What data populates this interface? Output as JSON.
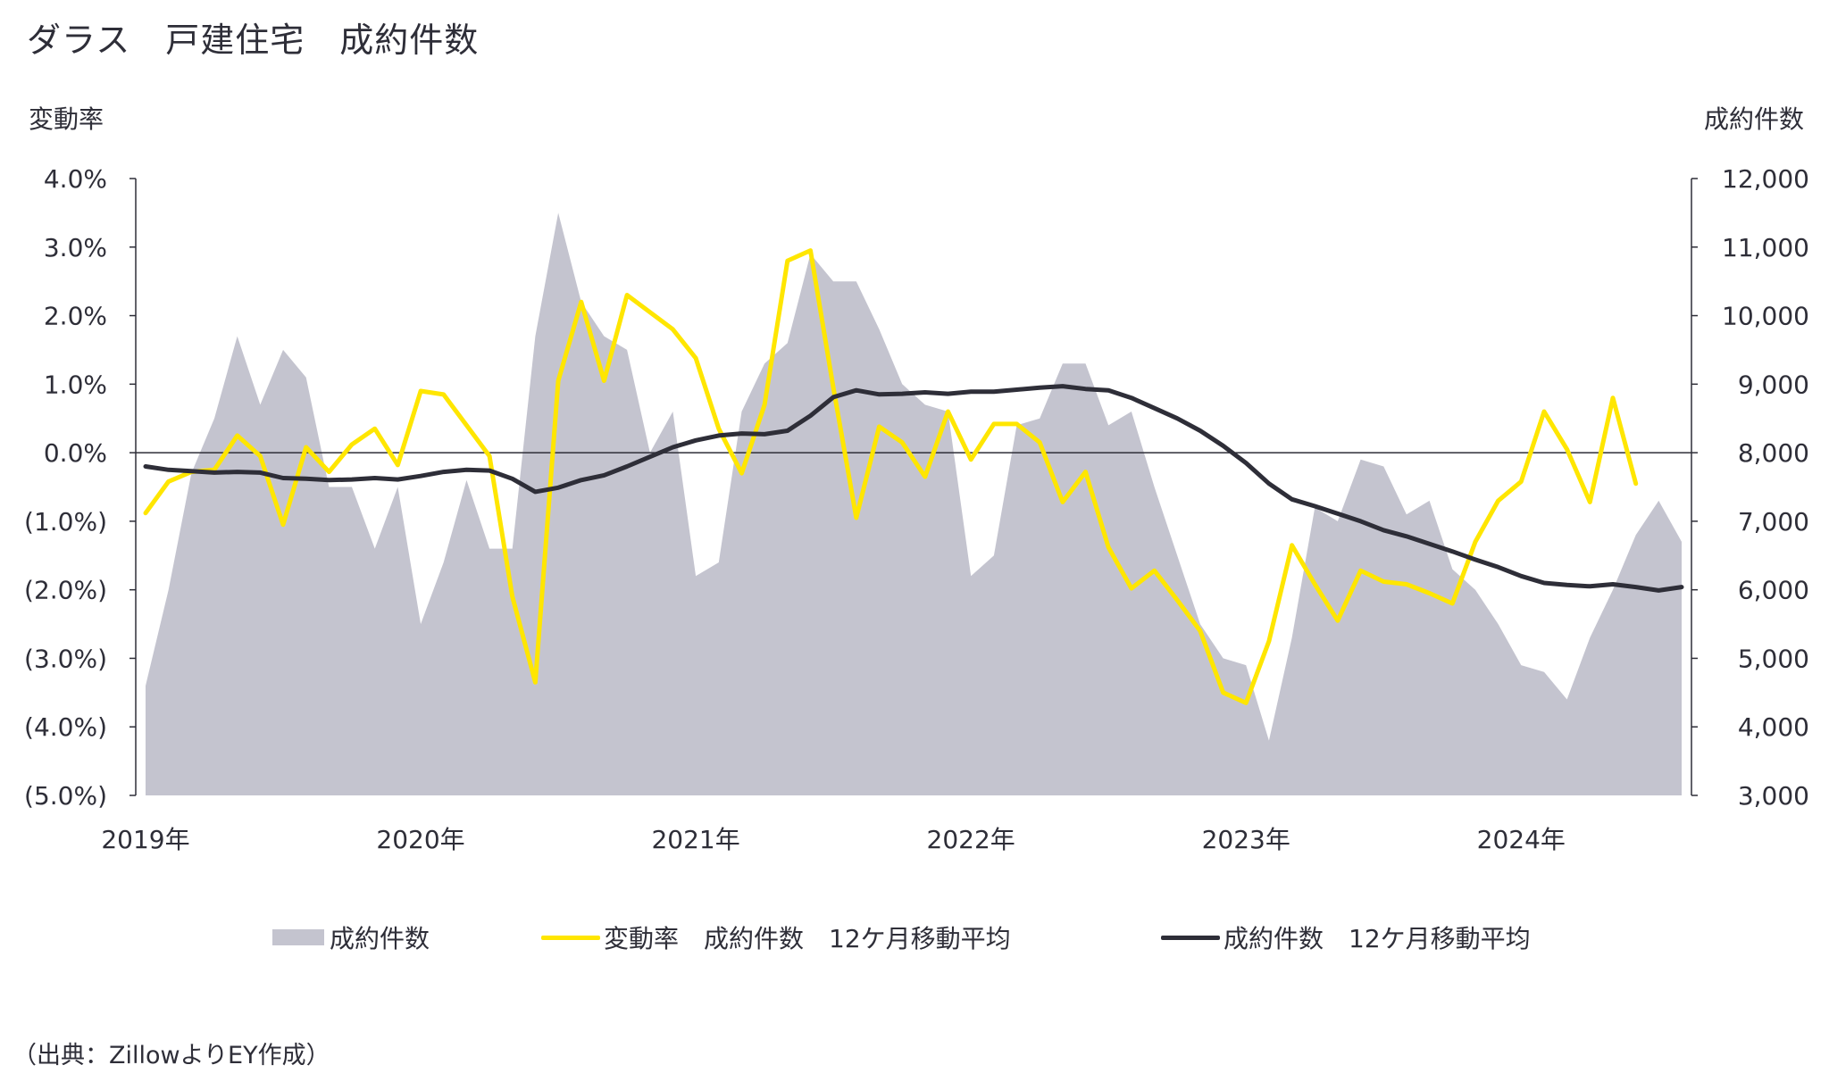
{
  "page": {
    "title": "ダラス　戸建住宅　成約件数",
    "source": "（出典：ZillowよりEY作成）"
  },
  "chart_data": {
    "type": "line",
    "title": "ダラス　戸建住宅　成約件数",
    "ylabel_left": "変動率",
    "ylabel_right": "成約件数",
    "ylim_left": [
      -5.0,
      4.0
    ],
    "ylim_right": [
      3000,
      12000
    ],
    "y_ticks_left": [
      "4.0%",
      "3.0%",
      "2.0%",
      "1.0%",
      "0.0%",
      "(1.0%)",
      "(2.0%)",
      "(3.0%)",
      "(4.0%)",
      "(5.0%)"
    ],
    "y_ticks_right": [
      "12,000",
      "11,000",
      "10,000",
      "9,000",
      "8,000",
      "7,000",
      "6,000",
      "5,000",
      "4,000",
      "3,000"
    ],
    "x_ticks": [
      "2019年",
      "2020年",
      "2021年",
      "2022年",
      "2023年",
      "2024年"
    ],
    "x_start": "2019-01",
    "grid": false,
    "zero_line": true,
    "legend_position": "bottom",
    "colors": {
      "area": "#c4c4cf",
      "change": "#ffe600",
      "moving_avg": "#2e2e38",
      "axis": "#2e2e38"
    },
    "series": [
      {
        "name": "成約件数",
        "type": "area",
        "axis": "right",
        "values": [
          4600,
          6000,
          7700,
          8500,
          9700,
          8700,
          9500,
          9100,
          7500,
          7500,
          6600,
          7500,
          5500,
          6400,
          7600,
          6600,
          6600,
          9700,
          11500,
          10200,
          9700,
          9500,
          8000,
          8600,
          6200,
          6400,
          8600,
          9300,
          9600,
          10900,
          10500,
          10500,
          9800,
          9000,
          8700,
          8600,
          6200,
          6500,
          8400,
          8500,
          9300,
          9300,
          8400,
          8600,
          7500,
          6500,
          5500,
          5000,
          4900,
          3800,
          5300,
          7200,
          7000,
          7900,
          7800,
          7100,
          7300,
          6300,
          6000,
          5500,
          4900,
          4800,
          4400,
          5300,
          6000,
          6800,
          7300,
          6700
        ]
      },
      {
        "name": "変動率　成約件数　12ケ月移動平均",
        "type": "line",
        "axis": "left",
        "values": [
          -0.88,
          -0.42,
          -0.28,
          -0.25,
          0.25,
          -0.05,
          -1.05,
          0.08,
          -0.28,
          0.12,
          0.35,
          -0.18,
          0.9,
          0.85,
          0.4,
          -0.05,
          -2.1,
          -3.35,
          1.05,
          2.2,
          1.05,
          2.3,
          2.05,
          1.8,
          1.38,
          0.35,
          -0.3,
          0.7,
          2.8,
          2.95,
          0.95,
          -0.95,
          0.38,
          0.15,
          -0.35,
          0.6,
          -0.1,
          0.42,
          0.42,
          0.15,
          -0.72,
          -0.28,
          -1.38,
          -1.98,
          -1.72,
          -2.15,
          -2.6,
          -3.5,
          -3.65,
          -2.75,
          -1.35,
          -1.92,
          -2.45,
          -1.72,
          -1.88,
          -1.92,
          -2.05,
          -2.2,
          -1.3,
          -0.7,
          -0.42,
          0.6,
          0.05,
          -0.72,
          0.8,
          -0.45
        ]
      },
      {
        "name": "成約件数　12ケ月移動平均",
        "type": "line",
        "axis": "right",
        "values": [
          7800,
          7750,
          7730,
          7710,
          7720,
          7710,
          7630,
          7620,
          7600,
          7610,
          7630,
          7610,
          7660,
          7720,
          7750,
          7740,
          7620,
          7430,
          7490,
          7600,
          7670,
          7800,
          7940,
          8080,
          8180,
          8250,
          8280,
          8270,
          8320,
          8540,
          8810,
          8910,
          8850,
          8860,
          8880,
          8860,
          8890,
          8890,
          8920,
          8950,
          8970,
          8930,
          8910,
          8800,
          8650,
          8500,
          8320,
          8100,
          7850,
          7550,
          7320,
          7220,
          7110,
          7000,
          6870,
          6780,
          6670,
          6560,
          6440,
          6330,
          6200,
          6100,
          6070,
          6050,
          6080,
          6040,
          5990,
          6040
        ]
      }
    ]
  },
  "legend": {
    "area_label": "成約件数",
    "change_label": "変動率　成約件数　12ケ月移動平均",
    "ma_label": "成約件数　12ケ月移動平均"
  }
}
